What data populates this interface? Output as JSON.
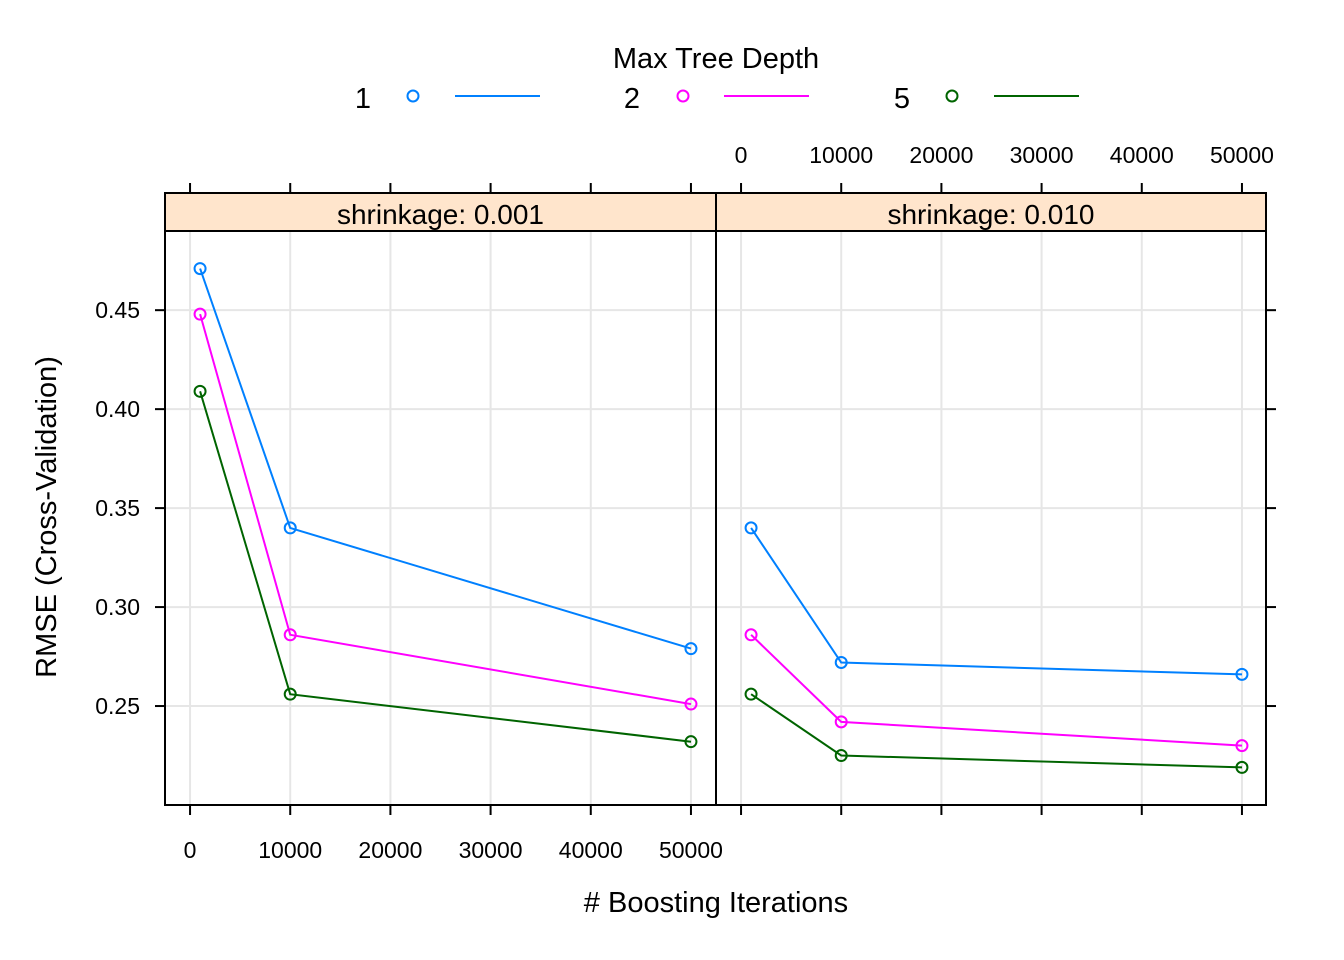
{
  "chart_data": {
    "type": "line",
    "legend": {
      "title": "Max Tree Depth",
      "placement": "top"
    },
    "xlabel": "# Boosting Iterations",
    "ylabel": "RMSE (Cross-Validation)",
    "x_ticks": [
      0,
      10000,
      20000,
      30000,
      40000,
      50000
    ],
    "y_ticks": [
      0.25,
      0.3,
      0.35,
      0.4,
      0.45
    ],
    "y_tick_labels": [
      "0.25",
      "0.30",
      "0.35",
      "0.40",
      "0.45"
    ],
    "xlim": [
      -2500,
      52500
    ],
    "ylim": [
      0.2,
      0.49
    ],
    "grid": true,
    "series_colors": [
      "#0080ff",
      "#ff00ff",
      "#006400"
    ],
    "panels": [
      {
        "strip": "shrinkage: 0.001",
        "x": [
          1000,
          10000,
          50000
        ],
        "series": [
          {
            "name": "1",
            "color": "#0080ff",
            "values": [
              0.471,
              0.34,
              0.279
            ]
          },
          {
            "name": "2",
            "color": "#ff00ff",
            "values": [
              0.448,
              0.286,
              0.251
            ]
          },
          {
            "name": "5",
            "color": "#006400",
            "values": [
              0.409,
              0.256,
              0.232
            ]
          }
        ]
      },
      {
        "strip": "shrinkage: 0.010",
        "x": [
          1000,
          10000,
          50000
        ],
        "series": [
          {
            "name": "1",
            "color": "#0080ff",
            "values": [
              0.34,
              0.272,
              0.266
            ]
          },
          {
            "name": "2",
            "color": "#ff00ff",
            "values": [
              0.286,
              0.242,
              0.23
            ]
          },
          {
            "name": "5",
            "color": "#006400",
            "values": [
              0.256,
              0.225,
              0.219
            ]
          }
        ]
      }
    ]
  }
}
